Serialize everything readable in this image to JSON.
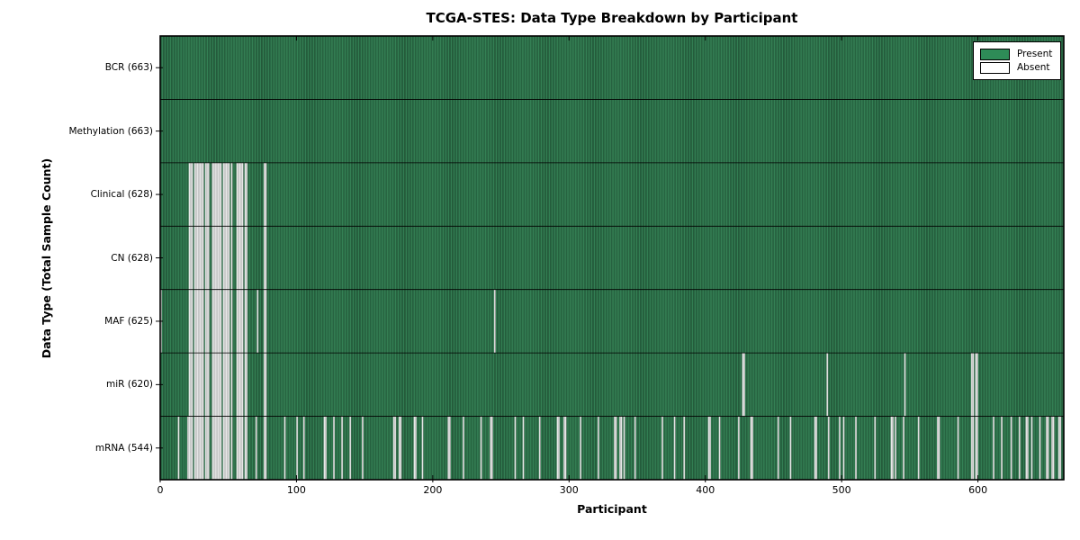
{
  "title": "TCGA-STES: Data Type Breakdown by Participant",
  "x_axis_label": "Participant",
  "y_axis_label": "Data Type (Total Sample Count)",
  "legend": {
    "position": "upper right",
    "entries": [
      {
        "label": "Present",
        "color": "#2e8b57"
      },
      {
        "label": "Absent",
        "color": "#ffffff"
      }
    ]
  },
  "colors": {
    "present_fill": "#2f7c50",
    "present_edge": "#173d27",
    "absent_fill": "#e7e7e7",
    "absent_edge": "#a0a0a0",
    "spine": "#000000",
    "background": "#ffffff"
  },
  "chart_data": {
    "type": "heatmap",
    "title": "TCGA-STES: Data Type Breakdown by Participant",
    "xlabel": "Participant",
    "ylabel": "Data Type (Total Sample Count)",
    "x_range": [
      0,
      663
    ],
    "x_ticks": [
      0,
      100,
      200,
      300,
      400,
      500,
      600
    ],
    "total_participants": 663,
    "grid": false,
    "legend_position": "upper right",
    "value_encoding": {
      "present": "#2e8b57",
      "absent": "#ffffff"
    },
    "rows": [
      {
        "label": "BCR (663)",
        "name": "BCR",
        "present_count": 663,
        "absent_count": 0,
        "absent_participants": []
      },
      {
        "label": "Methylation (663)",
        "name": "Methylation",
        "present_count": 663,
        "absent_count": 0,
        "absent_participants": []
      },
      {
        "label": "Clinical (628)",
        "name": "Clinical",
        "present_count": 628,
        "absent_count": 35,
        "absent_participants": [
          21,
          22,
          23,
          25,
          26,
          27,
          28,
          29,
          30,
          31,
          33,
          34,
          35,
          38,
          39,
          40,
          41,
          42,
          43,
          44,
          46,
          47,
          48,
          49,
          50,
          52,
          56,
          57,
          58,
          59,
          60,
          62,
          63,
          76,
          77
        ]
      },
      {
        "label": "CN (628)",
        "name": "CN",
        "present_count": 628,
        "absent_count": 35,
        "absent_participants": [
          21,
          22,
          23,
          25,
          26,
          27,
          28,
          29,
          30,
          31,
          33,
          34,
          35,
          38,
          39,
          40,
          41,
          42,
          43,
          44,
          46,
          47,
          48,
          49,
          50,
          52,
          56,
          57,
          58,
          59,
          60,
          62,
          63,
          76,
          77
        ]
      },
      {
        "label": "MAF (625)",
        "name": "MAF",
        "present_count": 625,
        "absent_count": 38,
        "absent_participants": [
          0,
          21,
          22,
          23,
          25,
          26,
          27,
          28,
          29,
          30,
          31,
          33,
          34,
          35,
          38,
          39,
          40,
          41,
          42,
          43,
          44,
          46,
          47,
          48,
          49,
          50,
          52,
          56,
          57,
          58,
          59,
          60,
          62,
          63,
          71,
          76,
          77,
          245
        ]
      },
      {
        "label": "miR (620)",
        "name": "miR",
        "present_count": 620,
        "absent_count": 43,
        "absent_participants": [
          21,
          22,
          23,
          25,
          26,
          27,
          28,
          29,
          30,
          31,
          33,
          34,
          35,
          38,
          39,
          40,
          41,
          42,
          43,
          44,
          46,
          47,
          48,
          49,
          50,
          52,
          56,
          57,
          58,
          59,
          60,
          62,
          63,
          76,
          77,
          427,
          428,
          489,
          546,
          595,
          596,
          598,
          599
        ]
      },
      {
        "label": "mRNA (544)",
        "name": "mRNA",
        "present_count": 544,
        "absent_count": 119,
        "absent_participants": [
          13,
          20,
          21,
          22,
          23,
          25,
          26,
          27,
          28,
          29,
          30,
          31,
          33,
          34,
          35,
          38,
          39,
          40,
          41,
          42,
          43,
          44,
          46,
          47,
          48,
          49,
          50,
          52,
          56,
          57,
          58,
          59,
          60,
          62,
          63,
          70,
          76,
          77,
          91,
          100,
          105,
          120,
          121,
          127,
          133,
          139,
          148,
          171,
          172,
          175,
          176,
          186,
          187,
          192,
          211,
          212,
          222,
          235,
          242,
          243,
          260,
          266,
          278,
          291,
          292,
          296,
          297,
          308,
          321,
          333,
          334,
          337,
          338,
          340,
          348,
          368,
          377,
          384,
          402,
          403,
          410,
          424,
          433,
          434,
          453,
          462,
          480,
          481,
          490,
          498,
          501,
          510,
          524,
          536,
          537,
          539,
          545,
          556,
          570,
          571,
          585,
          595,
          596,
          598,
          599,
          611,
          617,
          624,
          630,
          635,
          636,
          639,
          645,
          650,
          651,
          654,
          655,
          659,
          660
        ]
      }
    ]
  }
}
